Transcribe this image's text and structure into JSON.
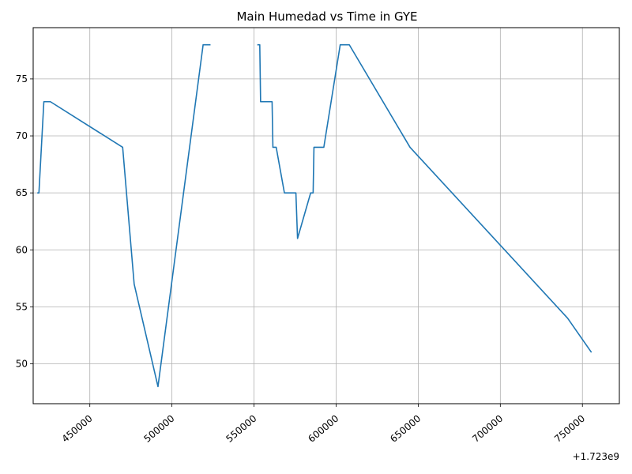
{
  "chart_data": {
    "type": "line",
    "title": "Main Humedad vs Time in GYE",
    "xlabel": "",
    "ylabel": "",
    "x_offset_label": "+1.723e9",
    "xlim": [
      415500,
      772500
    ],
    "ylim": [
      46.5,
      79.5
    ],
    "x_ticks": [
      450000,
      500000,
      550000,
      600000,
      650000,
      700000,
      750000
    ],
    "x_tick_labels": [
      "450000",
      "500000",
      "550000",
      "600000",
      "650000",
      "700000",
      "750000"
    ],
    "y_ticks": [
      50,
      55,
      60,
      65,
      70,
      75
    ],
    "y_tick_labels": [
      "50",
      "55",
      "60",
      "65",
      "70",
      "75"
    ],
    "grid": true,
    "series": [
      {
        "color": "#1f77b4",
        "segments": [
          {
            "x": [
              418000,
              419000,
              422000,
              426000,
              470000,
              477000,
              491500,
              519000,
              523500
            ],
            "y": [
              65,
              65,
              73,
              73,
              69,
              57,
              48,
              78,
              78
            ]
          },
          {
            "x": [
              552000,
              553500,
              554000,
              561000,
              561500,
              563500,
              568500,
              575500,
              576500,
              584500,
              586000,
              586500,
              592500,
              602500,
              608000,
              645000,
              741000,
              755500
            ],
            "y": [
              78,
              78,
              73,
              73,
              69,
              69,
              65,
              65,
              61,
              65,
              65,
              69,
              69,
              78,
              78,
              69,
              54,
              51
            ]
          }
        ]
      }
    ]
  }
}
